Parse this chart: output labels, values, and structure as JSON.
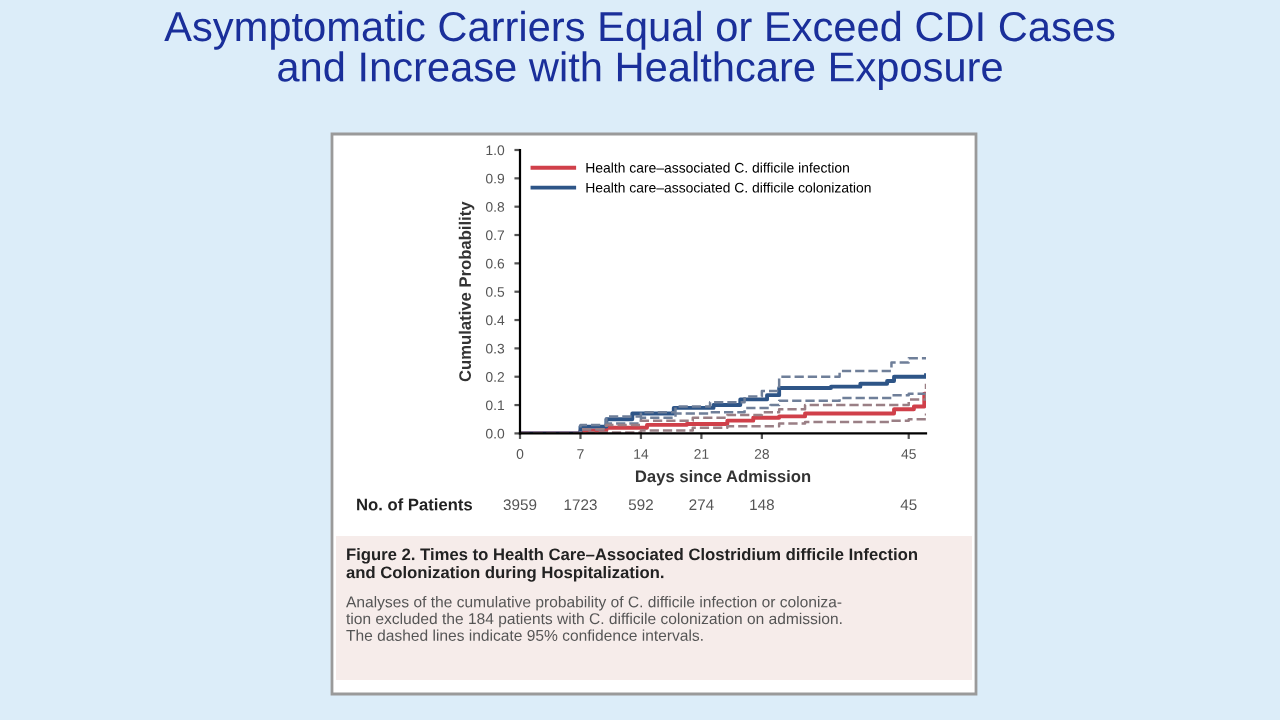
{
  "chart_data": {
    "type": "step",
    "title": "Asymptomatic Carriers Equal or Exceed CDI Cases\nand Increase with Healthcare Exposure",
    "xlabel": "Days since Admission",
    "ylabel": "Cumulative Probability",
    "xlim": [
      0,
      47
    ],
    "xticks": [
      0,
      7,
      14,
      21,
      28,
      45
    ],
    "ylim": [
      0,
      1.0
    ],
    "yticks": [
      {
        "value": 0,
        "label": "0.0"
      },
      0.1,
      0.2,
      0.3,
      0.4,
      0.5,
      0.6,
      0.7,
      0.8,
      0.9,
      {
        "value": 1.0,
        "label": "1.0"
      }
    ],
    "grid": false,
    "legend": "top left",
    "series": [
      {
        "name": "Health care–associated C. difficile infection",
        "color": "#d0404a",
        "x": [
          0,
          6,
          7,
          10,
          14.7,
          19.3,
          24,
          27,
          30,
          33,
          42.5,
          43.3,
          45.6,
          46.8,
          47
        ],
        "values": [
          0,
          0,
          0.01,
          0.02,
          0.03,
          0.033,
          0.045,
          0.055,
          0.06,
          0.07,
          0.07,
          0.085,
          0.095,
          0.14,
          0.14
        ]
      },
      {
        "name": "Health care–associated C. difficile colonization",
        "color": "#2e5587",
        "x": [
          0,
          3,
          7,
          10,
          13,
          17.8,
          22.4,
          25.5,
          28.6,
          30,
          36,
          39.4,
          42.5,
          43.3,
          47
        ],
        "values": [
          0,
          0,
          0.024,
          0.05,
          0.07,
          0.09,
          0.1,
          0.12,
          0.135,
          0.16,
          0.165,
          0.175,
          0.185,
          0.2,
          0.205
        ]
      },
      {
        "color": "#6f7f99",
        "line_style": "dashed",
        "x": [
          0,
          3,
          7,
          10,
          14,
          18,
          22,
          26,
          28,
          30,
          37,
          43,
          45,
          47
        ],
        "values": [
          0,
          0,
          0.03,
          0.06,
          0.075,
          0.095,
          0.11,
          0.13,
          0.15,
          0.2,
          0.22,
          0.25,
          0.265,
          0.265
        ]
      },
      {
        "color": "#6f7f99",
        "line_style": "dashed",
        "x": [
          0,
          3,
          7,
          10,
          14,
          18,
          22,
          26,
          29,
          30,
          37,
          43,
          45,
          47
        ],
        "values": [
          0,
          0,
          0.015,
          0.035,
          0.055,
          0.07,
          0.075,
          0.09,
          0.1,
          0.115,
          0.125,
          0.135,
          0.14,
          0.15
        ]
      },
      {
        "color": "#9a7f85",
        "line_style": "dashed",
        "x": [
          0,
          6,
          7,
          10,
          14,
          20,
          24,
          28,
          30,
          33,
          43,
          45,
          47
        ],
        "values": [
          0,
          0,
          0.015,
          0.03,
          0.045,
          0.055,
          0.065,
          0.075,
          0.085,
          0.1,
          0.1,
          0.12,
          0.175
        ]
      },
      {
        "color": "#9a7f85",
        "line_style": "dashed",
        "x": [
          0,
          7,
          8,
          14,
          20,
          24,
          30,
          33,
          43,
          45,
          47
        ],
        "values": [
          0,
          0,
          0.003,
          0.01,
          0.02,
          0.025,
          0.035,
          0.04,
          0.045,
          0.05,
          0.07
        ]
      }
    ],
    "annotations": [
      "No. of Patients",
      "3959",
      "1723",
      "592",
      "274",
      "148",
      "45",
      "Figure 2. Times to Health Care–Associated Clostridium difficile Infection\nand Colonization during Hospitalization.",
      "Analyses of the cumulative probability of C. difficile infection or coloniza-\ntion excluded the 184 patients with C. difficile colonization on admission.\nThe dashed lines indicate 95% confidence intervals."
    ]
  }
}
